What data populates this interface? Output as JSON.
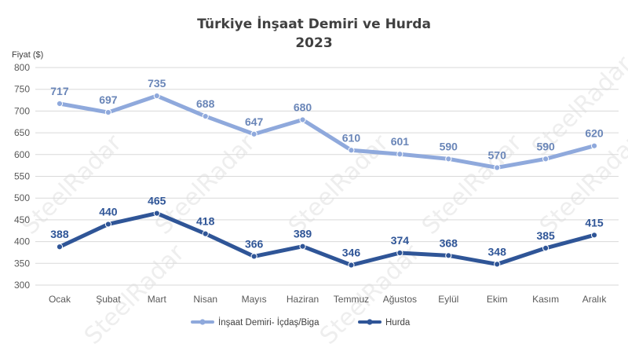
{
  "chart_data": {
    "type": "line",
    "title": "Türkiye İnşaat Demiri ve Hurda",
    "subtitle": "2023",
    "ylabel": "Fiyat ($)",
    "ylim": [
      300,
      800
    ],
    "yticks": [
      300,
      350,
      400,
      450,
      500,
      550,
      600,
      650,
      700,
      750,
      800
    ],
    "grid": true,
    "legend_position": "bottom",
    "categories": [
      "Ocak",
      "Şubat",
      "Mart",
      "Nisan",
      "Mayıs",
      "Haziran",
      "Temmuz",
      "Ağustos",
      "Eylül",
      "Ekim",
      "Kasım",
      "Aralık"
    ],
    "series": [
      {
        "name": "İnşaat Demiri- İçdaş/Biga",
        "color": "#8fa9dc",
        "label_color": "#6a86b8",
        "values": [
          717,
          697,
          735,
          688,
          647,
          680,
          610,
          601,
          590,
          570,
          590,
          620
        ]
      },
      {
        "name": "Hurda",
        "color": "#2f5597",
        "label_color": "#2f5597",
        "values": [
          388,
          440,
          465,
          418,
          366,
          389,
          346,
          374,
          368,
          348,
          385,
          415
        ]
      }
    ]
  },
  "watermark": "SteelRadar"
}
